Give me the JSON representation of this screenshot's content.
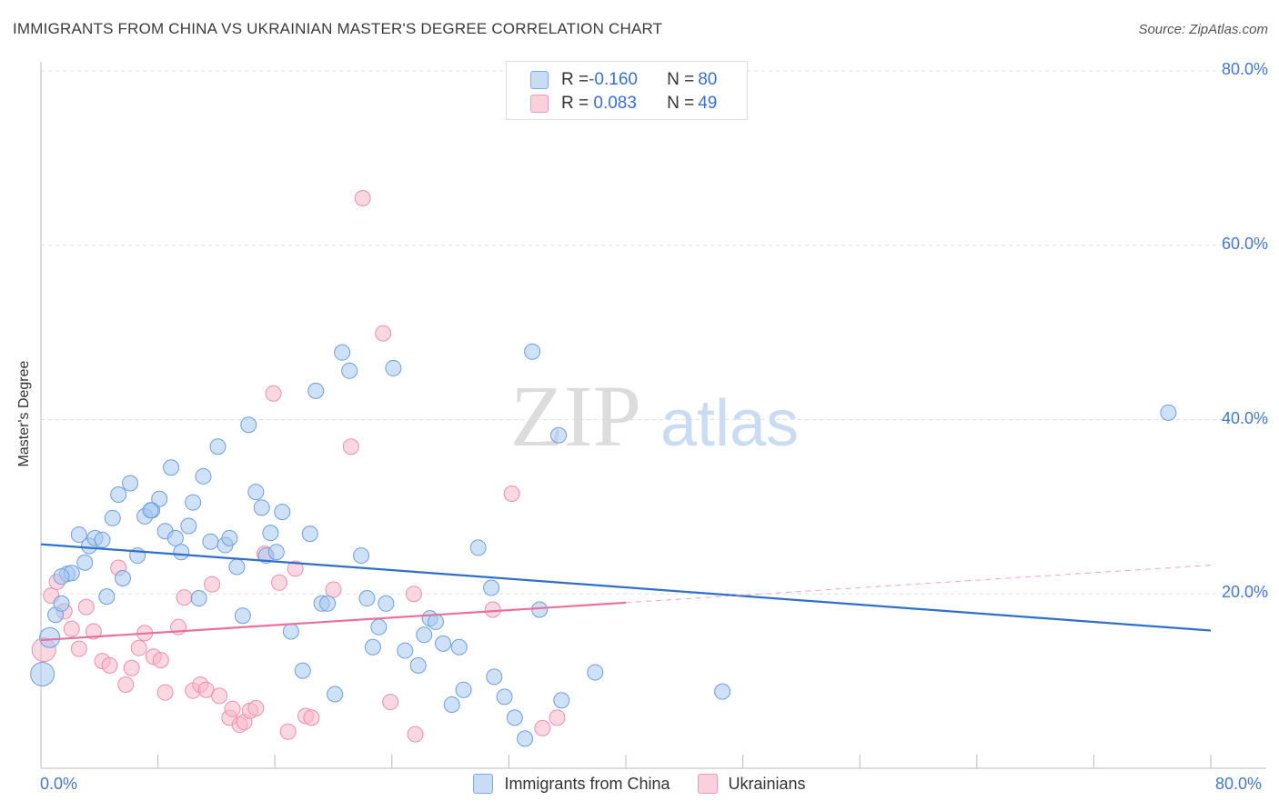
{
  "title": "IMMIGRANTS FROM CHINA VS UKRAINIAN MASTER'S DEGREE CORRELATION CHART",
  "source": "Source: ZipAtlas.com",
  "watermark": {
    "zip": "ZIP",
    "atlas": "atlas"
  },
  "legend_top": {
    "rows": [
      {
        "r_label": "R = ",
        "r_value": "-0.160",
        "n_label": "N = ",
        "n_value": "80"
      },
      {
        "r_label": "R = ",
        "r_value": " 0.083",
        "n_label": "N = ",
        "n_value": "49"
      }
    ]
  },
  "colors": {
    "blue_fill": "#a8c8f0",
    "blue_stroke": "#6e9ee0",
    "blue_line": "#2f6fcc",
    "pink_fill": "#f6b8cb",
    "pink_stroke": "#ec8fae",
    "pink_line": "#e8709a",
    "tick_text": "#4477cc",
    "grid": "#dddddd"
  },
  "chart_data": {
    "type": "scatter",
    "title": "IMMIGRANTS FROM CHINA VS UKRAINIAN MASTER'S DEGREE CORRELATION CHART",
    "xlabel": "",
    "ylabel": "Master's Degree",
    "xlim": [
      0,
      80
    ],
    "ylim": [
      0,
      80
    ],
    "x_tick_labels": [
      "0.0%",
      "80.0%"
    ],
    "y_tick_labels": [
      "20.0%",
      "40.0%",
      "60.0%",
      "80.0%"
    ],
    "y_ticks": [
      20,
      40,
      60,
      80
    ],
    "grid": true,
    "legend_position": "top-center",
    "series": [
      {
        "name": "Immigrants from China",
        "color": "#6e9ee0",
        "R": -0.16,
        "N": 80,
        "trend": {
          "x": [
            0,
            80
          ],
          "y": [
            25.7,
            15.8
          ]
        },
        "points": [
          [
            0.1,
            10.8
          ],
          [
            0.6,
            15.0
          ],
          [
            1.0,
            17.6
          ],
          [
            1.4,
            18.9
          ],
          [
            1.8,
            22.3
          ],
          [
            2.1,
            22.4
          ],
          [
            2.6,
            26.8
          ],
          [
            3.0,
            23.6
          ],
          [
            3.3,
            25.5
          ],
          [
            3.7,
            26.4
          ],
          [
            4.2,
            26.2
          ],
          [
            4.5,
            19.7
          ],
          [
            4.9,
            28.7
          ],
          [
            5.3,
            31.4
          ],
          [
            5.6,
            21.8
          ],
          [
            6.1,
            32.7
          ],
          [
            6.6,
            24.4
          ],
          [
            7.1,
            28.9
          ],
          [
            7.6,
            29.6
          ],
          [
            8.1,
            30.9
          ],
          [
            8.5,
            27.2
          ],
          [
            8.9,
            34.5
          ],
          [
            9.2,
            26.4
          ],
          [
            9.6,
            24.8
          ],
          [
            10.1,
            27.8
          ],
          [
            10.4,
            30.5
          ],
          [
            10.8,
            19.5
          ],
          [
            11.1,
            33.5
          ],
          [
            11.6,
            26.0
          ],
          [
            12.1,
            36.9
          ],
          [
            12.6,
            25.6
          ],
          [
            12.9,
            26.4
          ],
          [
            13.4,
            23.1
          ],
          [
            13.8,
            17.5
          ],
          [
            14.2,
            39.4
          ],
          [
            14.7,
            31.7
          ],
          [
            15.1,
            29.9
          ],
          [
            15.4,
            24.4
          ],
          [
            15.7,
            27.0
          ],
          [
            16.1,
            24.8
          ],
          [
            16.5,
            29.4
          ],
          [
            17.1,
            15.7
          ],
          [
            17.9,
            11.2
          ],
          [
            18.4,
            26.9
          ],
          [
            18.8,
            43.3
          ],
          [
            19.2,
            18.9
          ],
          [
            19.6,
            18.9
          ],
          [
            20.1,
            8.5
          ],
          [
            20.6,
            47.7
          ],
          [
            21.1,
            45.6
          ],
          [
            21.9,
            24.4
          ],
          [
            22.3,
            19.5
          ],
          [
            22.7,
            13.9
          ],
          [
            23.1,
            16.2
          ],
          [
            23.6,
            18.9
          ],
          [
            24.1,
            45.9
          ],
          [
            24.9,
            13.5
          ],
          [
            25.8,
            11.8
          ],
          [
            26.2,
            15.3
          ],
          [
            26.6,
            17.2
          ],
          [
            27.0,
            16.8
          ],
          [
            27.5,
            14.3
          ],
          [
            28.1,
            7.3
          ],
          [
            28.6,
            13.9
          ],
          [
            28.9,
            9.0
          ],
          [
            29.9,
            25.3
          ],
          [
            30.8,
            20.7
          ],
          [
            31.0,
            10.5
          ],
          [
            31.7,
            8.2
          ],
          [
            32.4,
            5.8
          ],
          [
            33.1,
            3.4
          ],
          [
            33.6,
            47.8
          ],
          [
            34.1,
            18.2
          ],
          [
            35.4,
            38.2
          ],
          [
            35.6,
            7.8
          ],
          [
            37.9,
            11.0
          ],
          [
            46.6,
            8.8
          ],
          [
            77.1,
            40.8
          ],
          [
            1.4,
            22.0
          ],
          [
            7.5,
            29.6
          ]
        ]
      },
      {
        "name": "Ukrainians",
        "color": "#ec8fae",
        "R": 0.083,
        "N": 49,
        "trend": {
          "x": [
            0,
            40
          ],
          "y": [
            14.7,
            19.0
          ]
        },
        "trend_extension": {
          "x": [
            40,
            80
          ],
          "y": [
            19.0,
            23.3
          ]
        },
        "points": [
          [
            0.2,
            13.6
          ],
          [
            0.7,
            19.8
          ],
          [
            1.1,
            21.4
          ],
          [
            1.6,
            18.0
          ],
          [
            2.1,
            16.0
          ],
          [
            2.6,
            13.7
          ],
          [
            3.1,
            18.5
          ],
          [
            3.6,
            15.7
          ],
          [
            4.2,
            12.3
          ],
          [
            4.7,
            11.8
          ],
          [
            5.3,
            23.0
          ],
          [
            5.8,
            9.6
          ],
          [
            6.2,
            11.5
          ],
          [
            6.7,
            13.8
          ],
          [
            7.1,
            15.5
          ],
          [
            7.7,
            12.8
          ],
          [
            8.2,
            12.4
          ],
          [
            8.5,
            8.7
          ],
          [
            9.4,
            16.2
          ],
          [
            9.8,
            19.6
          ],
          [
            10.4,
            8.9
          ],
          [
            10.9,
            9.6
          ],
          [
            11.3,
            9.0
          ],
          [
            11.7,
            21.1
          ],
          [
            12.2,
            8.3
          ],
          [
            12.9,
            5.8
          ],
          [
            13.1,
            6.8
          ],
          [
            13.6,
            5.0
          ],
          [
            13.9,
            5.3
          ],
          [
            14.3,
            6.6
          ],
          [
            14.7,
            6.9
          ],
          [
            15.3,
            24.6
          ],
          [
            15.9,
            43.0
          ],
          [
            16.3,
            21.3
          ],
          [
            16.9,
            4.2
          ],
          [
            17.4,
            22.9
          ],
          [
            18.1,
            6.0
          ],
          [
            18.5,
            5.8
          ],
          [
            20.0,
            20.5
          ],
          [
            21.2,
            36.9
          ],
          [
            22.0,
            65.4
          ],
          [
            23.4,
            49.9
          ],
          [
            23.9,
            7.6
          ],
          [
            25.6,
            3.9
          ],
          [
            25.5,
            20.0
          ],
          [
            30.9,
            18.2
          ],
          [
            32.2,
            31.5
          ],
          [
            34.3,
            4.6
          ],
          [
            35.3,
            5.8
          ]
        ]
      }
    ]
  },
  "legend_bottom": [
    "Immigrants from China",
    "Ukrainians"
  ]
}
